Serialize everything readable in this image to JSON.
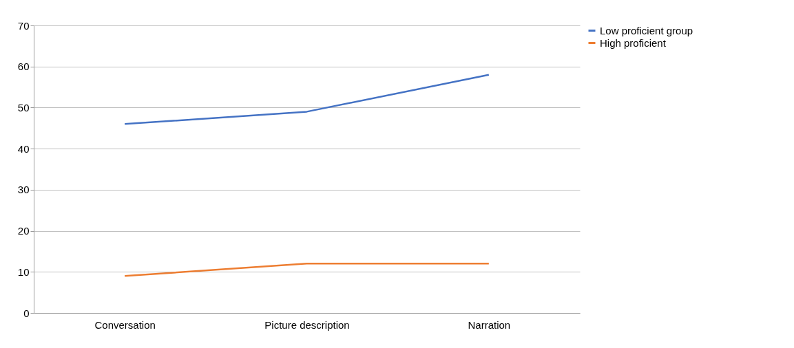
{
  "chart_data": {
    "type": "line",
    "categories": [
      "Conversation",
      "Picture description",
      "Narration"
    ],
    "series": [
      {
        "name": "Low proficient group",
        "color": "#4472c4",
        "values": [
          46,
          49,
          58
        ]
      },
      {
        "name": "High proficient",
        "color": "#ed7d31",
        "values": [
          9,
          12,
          12
        ]
      }
    ],
    "ylim": [
      0,
      70
    ],
    "yticks": [
      0,
      10,
      20,
      30,
      40,
      50,
      60,
      70
    ],
    "grid": "y",
    "legend": "right",
    "marker": "none",
    "line_style": "solid"
  }
}
